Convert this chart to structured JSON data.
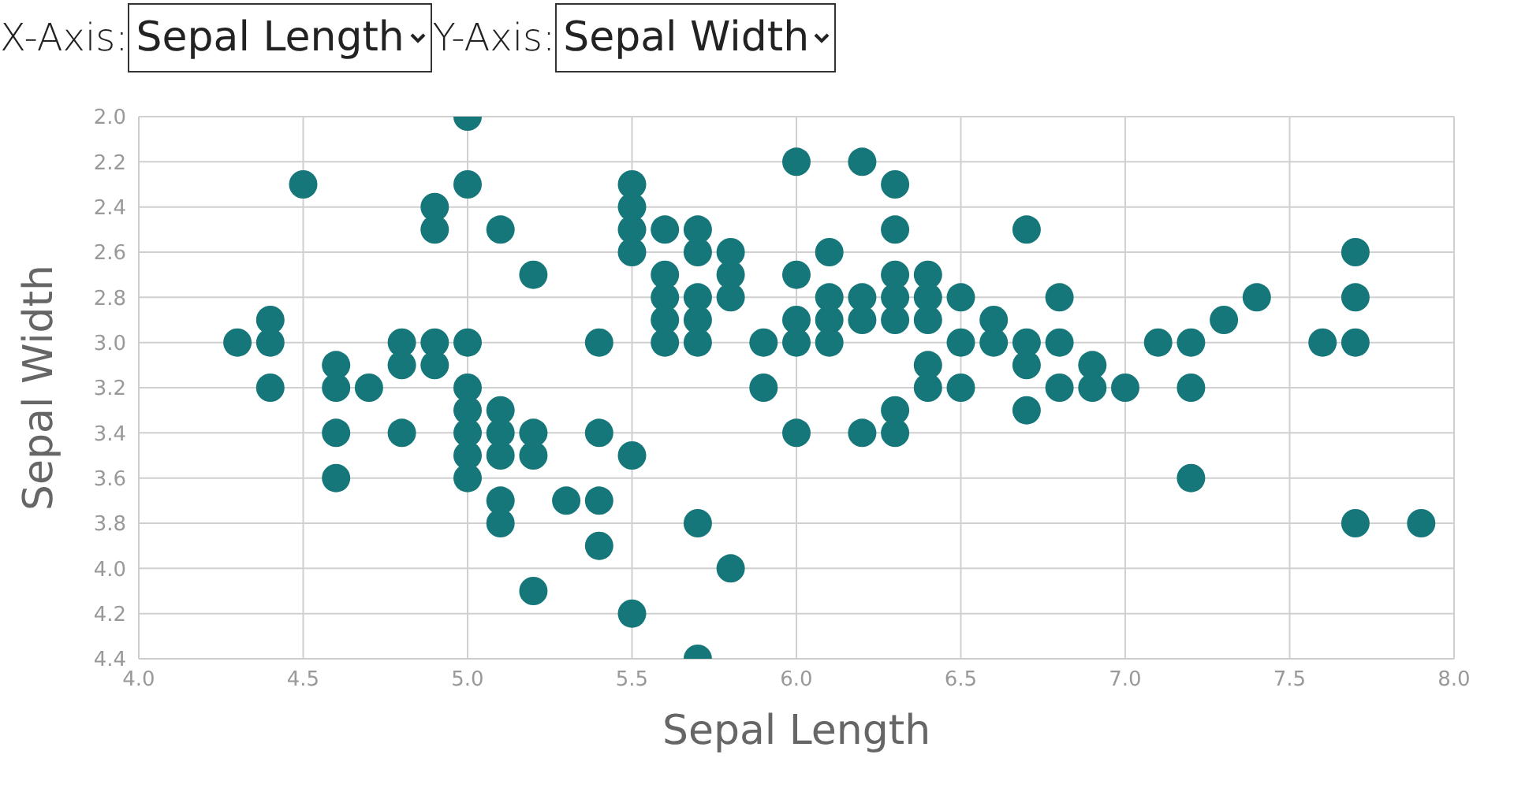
{
  "chart_data": {
    "type": "scatter",
    "xlabel": "Sepal Length",
    "ylabel": "Sepal Width",
    "annotations": [
      "X-Axis:",
      "Y-Axis:"
    ],
    "xlim": [
      4.0,
      8.0
    ],
    "xticks": [
      {
        "value": 4,
        "label": "4.0"
      },
      4.5,
      {
        "value": 5,
        "label": "5.0"
      },
      5.5,
      {
        "value": 6,
        "label": "6.0"
      },
      6.5,
      {
        "value": 7,
        "label": "7.0"
      },
      7.5,
      {
        "value": 8,
        "label": "8.0"
      }
    ],
    "ylim": [
      4.4,
      2.0
    ],
    "yticks": [
      {
        "value": 2,
        "label": "2.0"
      },
      2.2,
      2.4,
      2.6,
      2.8,
      {
        "value": 3,
        "label": "3.0"
      },
      3.2,
      3.4,
      3.6,
      3.8,
      {
        "value": 4,
        "label": "4.0"
      },
      4.2,
      4.4
    ],
    "grid": true,
    "marker": "circle",
    "series": [
      {
        "color": "#16777a",
        "x": [
          5.1,
          4.9,
          4.7,
          4.6,
          5.0,
          5.4,
          4.6,
          5.0,
          4.4,
          4.9,
          5.4,
          4.8,
          4.8,
          4.3,
          5.8,
          5.7,
          5.7,
          5.1,
          5.4,
          5.1,
          4.6,
          5.1,
          5.0,
          5.2,
          5.2,
          4.8,
          5.2,
          5.5,
          5.0,
          5.5,
          4.4,
          5.1,
          5.0,
          4.5,
          4.4,
          4.6,
          5.3,
          5.0,
          7.0,
          6.4,
          6.9,
          5.5,
          6.5,
          5.7,
          6.3,
          4.9,
          6.6,
          5.2,
          5.0,
          5.9,
          6.0,
          6.1,
          5.6,
          6.7,
          5.6,
          5.8,
          6.2,
          5.6,
          5.9,
          6.1,
          6.3,
          6.4,
          6.6,
          6.8,
          6.7,
          6.0,
          5.7,
          5.5,
          6.0,
          5.4,
          6.0,
          6.3,
          5.5,
          5.5,
          6.1,
          5.8,
          5.0,
          5.6,
          5.7,
          5.7,
          6.2,
          5.1,
          7.1,
          6.3,
          6.5,
          7.6,
          4.9,
          7.3,
          6.7,
          7.2,
          6.5,
          6.4,
          6.8,
          5.7,
          5.8,
          7.7,
          7.7,
          6.9,
          5.6,
          7.7,
          6.3,
          6.7,
          7.2,
          6.2,
          6.4,
          7.2,
          7.4,
          7.9,
          6.3,
          6.1,
          7.7,
          6.3,
          6.4,
          6.0,
          6.8,
          6.2
        ],
        "values": [
          3.5,
          3.0,
          3.2,
          3.1,
          3.6,
          3.9,
          3.4,
          3.4,
          2.9,
          3.1,
          3.7,
          3.4,
          3.0,
          3.0,
          4.0,
          4.4,
          3.8,
          3.8,
          3.4,
          3.7,
          3.6,
          3.3,
          3.0,
          3.5,
          3.4,
          3.1,
          4.1,
          4.2,
          3.2,
          3.5,
          3.0,
          3.4,
          3.5,
          2.3,
          3.2,
          3.2,
          3.7,
          3.3,
          3.2,
          3.2,
          3.1,
          2.3,
          2.8,
          2.8,
          3.3,
          2.4,
          2.9,
          2.7,
          2.0,
          3.0,
          2.2,
          2.9,
          2.9,
          3.1,
          3.0,
          2.7,
          2.2,
          2.5,
          3.2,
          2.8,
          2.5,
          2.9,
          3.0,
          2.8,
          3.0,
          2.9,
          2.6,
          2.4,
          2.7,
          3.0,
          3.4,
          2.3,
          2.5,
          2.6,
          3.0,
          2.6,
          2.3,
          2.7,
          3.0,
          2.9,
          2.9,
          2.5,
          3.0,
          2.9,
          3.0,
          3.0,
          2.5,
          2.9,
          2.5,
          3.6,
          3.2,
          2.7,
          3.0,
          2.5,
          2.8,
          3.8,
          2.6,
          3.2,
          2.8,
          2.8,
          2.7,
          3.3,
          3.2,
          2.8,
          2.8,
          3.0,
          2.8,
          3.8,
          2.8,
          2.6,
          3.0,
          3.4,
          3.1,
          3.0,
          3.2,
          3.4
        ]
      }
    ]
  }
}
